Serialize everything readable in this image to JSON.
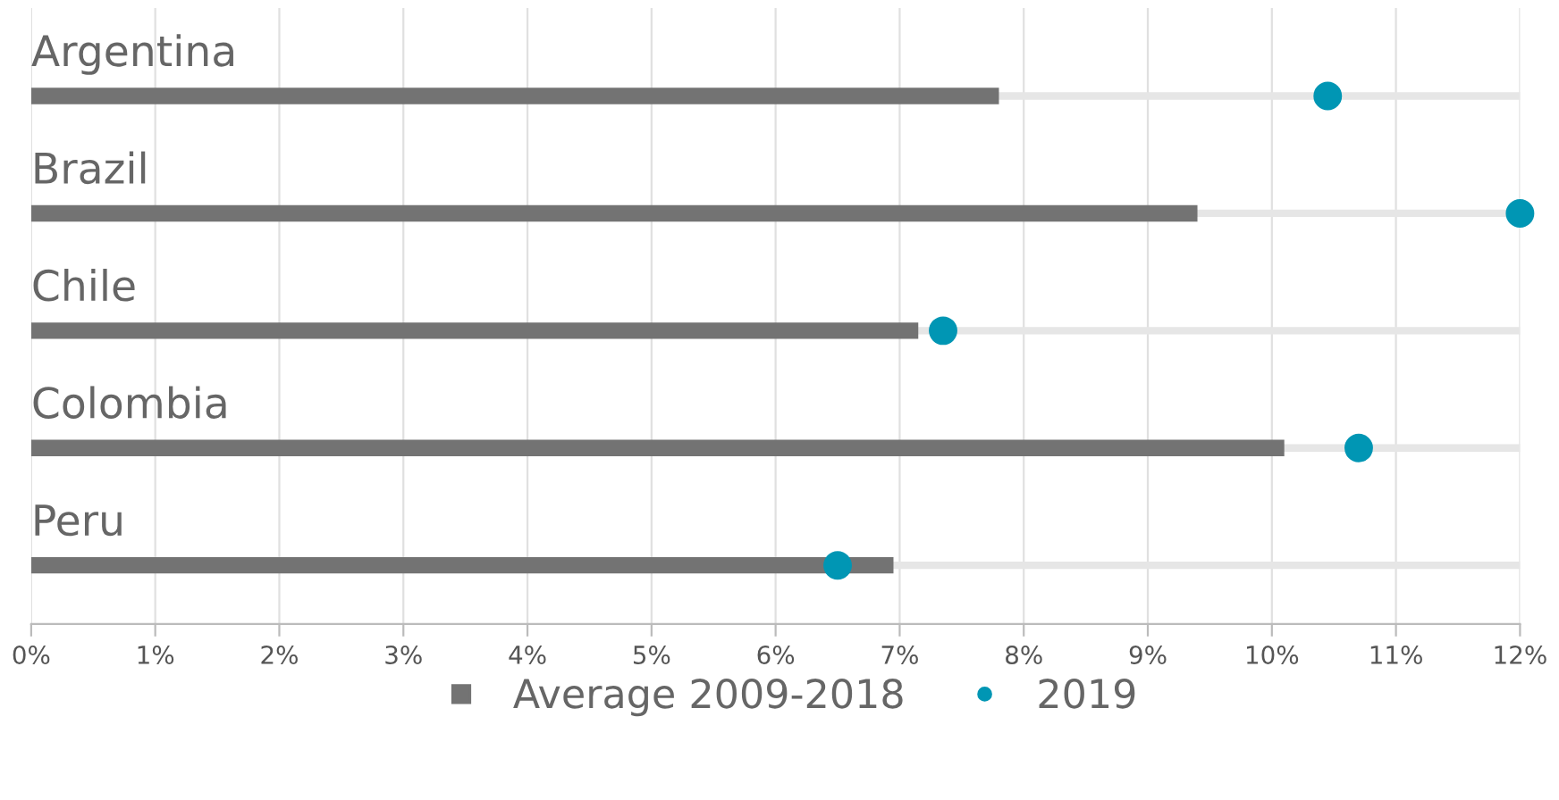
{
  "chart_data": {
    "type": "bar",
    "orientation": "horizontal",
    "categories": [
      "Argentina",
      "Brazil",
      "Chile",
      "Colombia",
      "Peru"
    ],
    "series": [
      {
        "name": "Average 2009-2018",
        "color": "#737373",
        "values": [
          7.8,
          9.4,
          7.15,
          10.1,
          6.95
        ]
      },
      {
        "name": "2019",
        "type": "scatter",
        "color": "#0096b4",
        "values": [
          10.45,
          12.0,
          7.35,
          10.7,
          6.5
        ]
      }
    ],
    "xlim": [
      0,
      12
    ],
    "xticks": [
      {
        "value": 0,
        "label": "0%"
      },
      {
        "value": 1,
        "label": "1%"
      },
      {
        "value": 2,
        "label": "2%"
      },
      {
        "value": 3,
        "label": "3%"
      },
      {
        "value": 4,
        "label": "4%"
      },
      {
        "value": 5,
        "label": "5%"
      },
      {
        "value": 6,
        "label": "6%"
      },
      {
        "value": 7,
        "label": "7%"
      },
      {
        "value": 8,
        "label": "8%"
      },
      {
        "value": 9,
        "label": "9%"
      },
      {
        "value": 10,
        "label": "10%"
      },
      {
        "value": 11,
        "label": "11%"
      },
      {
        "value": 12,
        "label": "12%"
      }
    ],
    "grid": true,
    "legend": "bottom",
    "marker": "circle"
  }
}
